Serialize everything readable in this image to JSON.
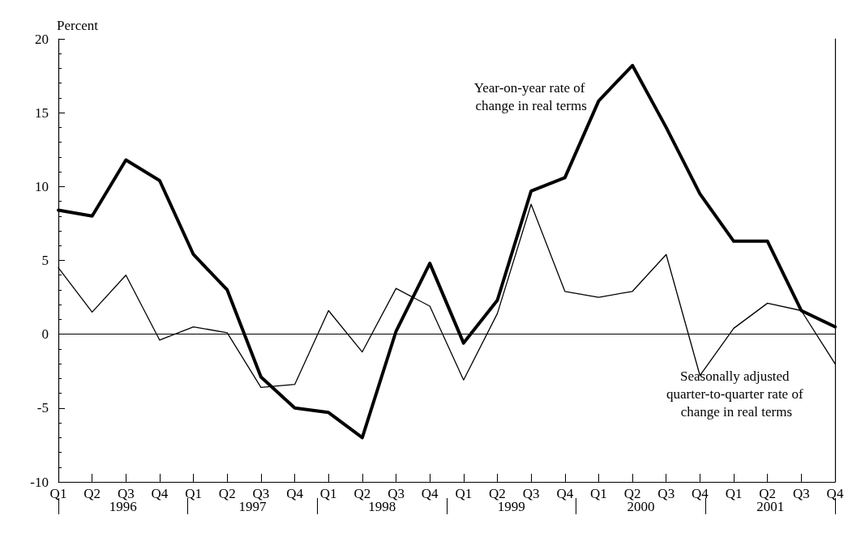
{
  "chart_data": {
    "type": "line",
    "ylabel": "Percent",
    "categories": [
      "Q1",
      "Q2",
      "Q3",
      "Q4",
      "Q1",
      "Q2",
      "Q3",
      "Q4",
      "Q1",
      "Q2",
      "Q3",
      "Q4",
      "Q1",
      "Q2",
      "Q3",
      "Q4",
      "Q1",
      "Q2",
      "Q3",
      "Q4",
      "Q1",
      "Q2",
      "Q3",
      "Q4"
    ],
    "series": [
      {
        "name": "Year-on-year rate of change in real terms",
        "color": "#000000",
        "values": [
          8.4,
          8.0,
          11.8,
          10.4,
          5.4,
          3.0,
          -2.9,
          -5.0,
          -5.3,
          -7.0,
          0.2,
          4.8,
          -0.6,
          2.3,
          9.7,
          10.6,
          15.8,
          18.2,
          14.0,
          9.5,
          6.3,
          6.3,
          1.6,
          0.5
        ]
      },
      {
        "name": "Seasonally adjusted quarter-to-quarter rate of change in real terms",
        "color": "#000000",
        "values": [
          4.5,
          1.5,
          4.0,
          -0.4,
          0.5,
          0.1,
          -3.6,
          -3.4,
          1.6,
          -1.2,
          3.1,
          1.9,
          -3.1,
          1.4,
          8.8,
          2.9,
          2.5,
          2.9,
          5.4,
          -2.8,
          0.4,
          2.1,
          1.6,
          -2.0
        ]
      }
    ],
    "annotations": [
      "1996",
      "1997",
      "1998",
      "1999",
      "2000",
      "2001"
    ],
    "ylim": [
      -10,
      20
    ],
    "yticks": [
      -10,
      -5,
      0,
      5,
      10,
      15,
      20
    ],
    "ref_lines": [
      {
        "axis": "y",
        "value": 0,
        "label": null,
        "color": "#000000"
      }
    ],
    "grid": false,
    "legend": false,
    "marker": "none",
    "line_style": "solid"
  }
}
